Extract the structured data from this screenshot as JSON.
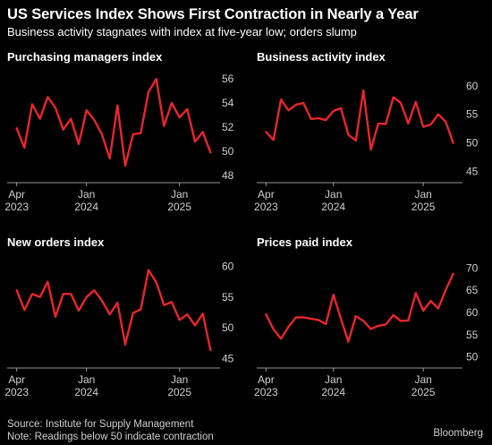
{
  "header": {
    "title": "US Services Index Shows First Contraction in Nearly a Year",
    "subtitle": "Business activity stagnates with index at five-year low; orders slump"
  },
  "footer": {
    "source": "Source: Institute for Supply Management",
    "note": "Note: Readings below 50 indicate contraction",
    "brand": "Bloomberg"
  },
  "colors": {
    "line": "#e8262b",
    "background": "#000000",
    "axis": "#9a9a9a"
  },
  "chart_data": [
    {
      "type": "line",
      "title": "Purchasing managers index",
      "x_ticks": [
        {
          "date": "2023-04",
          "label": "Apr",
          "year": "2023"
        },
        {
          "date": "2024-01",
          "label": "Jan",
          "year": "2024"
        },
        {
          "date": "2025-01",
          "label": "Jan",
          "year": "2025"
        }
      ],
      "y_ticks": [
        48,
        50,
        52,
        54,
        56
      ],
      "ylim": [
        47.4,
        56.6
      ],
      "xlim": [
        "2023-03",
        "2025-06"
      ],
      "series": [
        {
          "x": [
            "2023-04",
            "2023-05",
            "2023-06",
            "2023-07",
            "2023-08",
            "2023-09",
            "2023-10",
            "2023-11",
            "2023-12",
            "2024-01",
            "2024-02",
            "2024-03",
            "2024-04",
            "2024-05",
            "2024-06",
            "2024-07",
            "2024-08",
            "2024-09",
            "2024-10",
            "2024-11",
            "2024-12",
            "2025-01",
            "2025-02",
            "2025-03",
            "2025-04",
            "2025-05"
          ],
          "values": [
            51.9,
            50.3,
            53.9,
            52.7,
            54.5,
            53.6,
            51.8,
            52.7,
            50.6,
            53.4,
            52.6,
            51.4,
            49.4,
            53.8,
            48.8,
            51.4,
            51.5,
            54.9,
            56.0,
            52.1,
            54.0,
            52.8,
            53.5,
            50.8,
            51.6,
            49.9
          ]
        }
      ]
    },
    {
      "type": "line",
      "title": "Business activity index",
      "x_ticks": [
        {
          "date": "2023-04",
          "label": "Apr",
          "year": "2023"
        },
        {
          "date": "2024-01",
          "label": "Jan",
          "year": "2024"
        },
        {
          "date": "2025-01",
          "label": "Jan",
          "year": "2025"
        }
      ],
      "y_ticks": [
        45,
        50,
        55,
        60
      ],
      "ylim": [
        43.0,
        62.5
      ],
      "xlim": [
        "2023-03",
        "2025-06"
      ],
      "series": [
        {
          "x": [
            "2023-04",
            "2023-05",
            "2023-06",
            "2023-07",
            "2023-08",
            "2023-09",
            "2023-10",
            "2023-11",
            "2023-12",
            "2024-01",
            "2024-02",
            "2024-03",
            "2024-04",
            "2024-05",
            "2024-06",
            "2024-07",
            "2024-08",
            "2024-09",
            "2024-10",
            "2024-11",
            "2024-12",
            "2025-01",
            "2025-02",
            "2025-03",
            "2025-04",
            "2025-05"
          ],
          "values": [
            51.9,
            50.5,
            57.6,
            55.7,
            56.7,
            57.0,
            54.2,
            54.3,
            54.0,
            55.6,
            56.1,
            51.4,
            50.4,
            59.2,
            48.8,
            53.4,
            53.3,
            58.0,
            57.0,
            53.4,
            57.2,
            52.8,
            53.2,
            55.0,
            53.7,
            50.0
          ]
        }
      ]
    },
    {
      "type": "line",
      "title": "New orders index",
      "x_ticks": [
        {
          "date": "2023-04",
          "label": "Apr",
          "year": "2023"
        },
        {
          "date": "2024-01",
          "label": "Jan",
          "year": "2024"
        },
        {
          "date": "2025-01",
          "label": "Jan",
          "year": "2025"
        }
      ],
      "y_ticks": [
        45,
        50,
        55,
        60
      ],
      "ylim": [
        43.5,
        61.5
      ],
      "xlim": [
        "2023-03",
        "2025-06"
      ],
      "series": [
        {
          "x": [
            "2023-04",
            "2023-05",
            "2023-06",
            "2023-07",
            "2023-08",
            "2023-09",
            "2023-10",
            "2023-11",
            "2023-12",
            "2024-01",
            "2024-02",
            "2024-03",
            "2024-04",
            "2024-05",
            "2024-06",
            "2024-07",
            "2024-08",
            "2024-09",
            "2024-10",
            "2024-11",
            "2024-12",
            "2025-01",
            "2025-02",
            "2025-03",
            "2025-04",
            "2025-05"
          ],
          "values": [
            56.1,
            52.9,
            55.5,
            55.0,
            57.5,
            51.8,
            55.5,
            55.5,
            52.8,
            55.0,
            56.1,
            54.4,
            52.2,
            54.1,
            47.3,
            52.4,
            53.0,
            59.4,
            57.4,
            53.7,
            54.2,
            51.3,
            52.2,
            50.4,
            52.3,
            46.4
          ]
        }
      ]
    },
    {
      "type": "line",
      "title": "Prices paid index",
      "x_ticks": [
        {
          "date": "2023-04",
          "label": "Apr",
          "year": "2023"
        },
        {
          "date": "2024-01",
          "label": "Jan",
          "year": "2024"
        },
        {
          "date": "2025-01",
          "label": "Jan",
          "year": "2025"
        }
      ],
      "y_ticks": [
        50,
        55,
        60,
        65,
        70
      ],
      "ylim": [
        47.5,
        72.5
      ],
      "xlim": [
        "2023-03",
        "2025-06"
      ],
      "series": [
        {
          "x": [
            "2023-04",
            "2023-05",
            "2023-06",
            "2023-07",
            "2023-08",
            "2023-09",
            "2023-10",
            "2023-11",
            "2023-12",
            "2024-01",
            "2024-02",
            "2024-03",
            "2024-04",
            "2024-05",
            "2024-06",
            "2024-07",
            "2024-08",
            "2024-09",
            "2024-10",
            "2024-11",
            "2024-12",
            "2025-01",
            "2025-02",
            "2025-03",
            "2025-04",
            "2025-05"
          ],
          "values": [
            59.6,
            56.2,
            54.1,
            56.8,
            58.9,
            58.9,
            58.6,
            58.3,
            57.4,
            64.0,
            58.6,
            53.4,
            59.2,
            58.1,
            56.3,
            57.0,
            57.3,
            59.4,
            58.1,
            58.2,
            64.4,
            60.4,
            62.6,
            60.9,
            65.1,
            68.7
          ]
        }
      ]
    }
  ]
}
